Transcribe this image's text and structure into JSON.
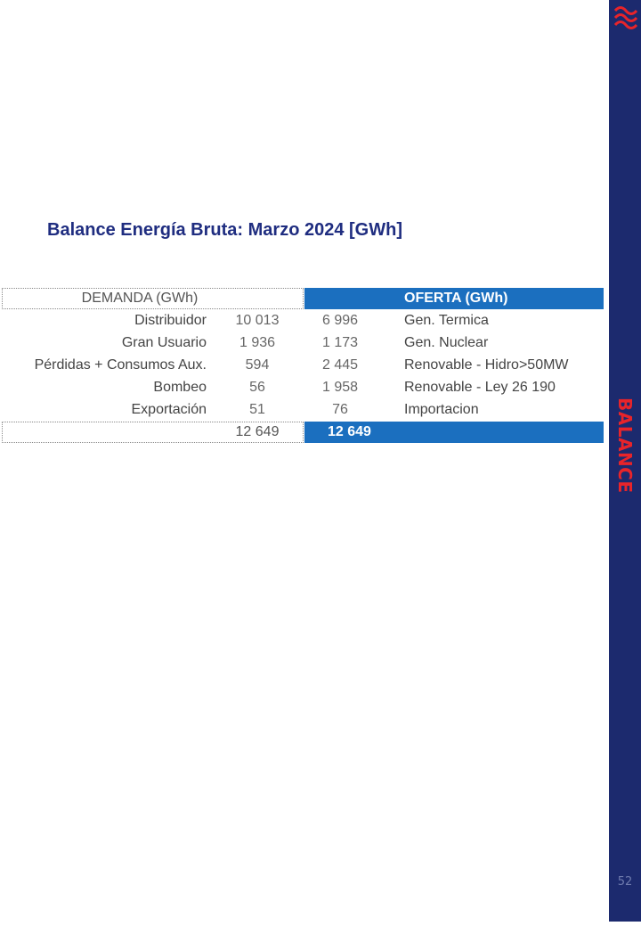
{
  "title": "Balance Energía Bruta: Marzo 2024 [GWh]",
  "sidebar": {
    "section": "BALANCE",
    "page": "52",
    "logo_icon": "waves-logo-icon"
  },
  "table": {
    "demand_header": "DEMANDA (GWh)",
    "supply_header": "OFERTA (GWh)",
    "rows": [
      {
        "demand_label": "Distribuidor",
        "demand_value": "10 013",
        "supply_value": "6 996",
        "supply_label": "Gen. Termica"
      },
      {
        "demand_label": "Gran Usuario",
        "demand_value": "1 936",
        "supply_value": "1 173",
        "supply_label": "Gen. Nuclear"
      },
      {
        "demand_label": "Pérdidas + Consumos Aux.",
        "demand_value": "594",
        "supply_value": "2 445",
        "supply_label": "Renovable - Hidro>50MW"
      },
      {
        "demand_label": "Bombeo",
        "demand_value": "56",
        "supply_value": "1 958",
        "supply_label": "Renovable - Ley 26 190"
      },
      {
        "demand_label": "Exportación",
        "demand_value": "51",
        "supply_value": "76",
        "supply_label": "Importacion"
      }
    ],
    "demand_total": "12 649",
    "supply_total": "12 649"
  },
  "colors": {
    "sidebar": "#1c2a6e",
    "accent_red": "#e8242a",
    "title_blue": "#1f2d80",
    "table_blue": "#1b6fbf"
  }
}
